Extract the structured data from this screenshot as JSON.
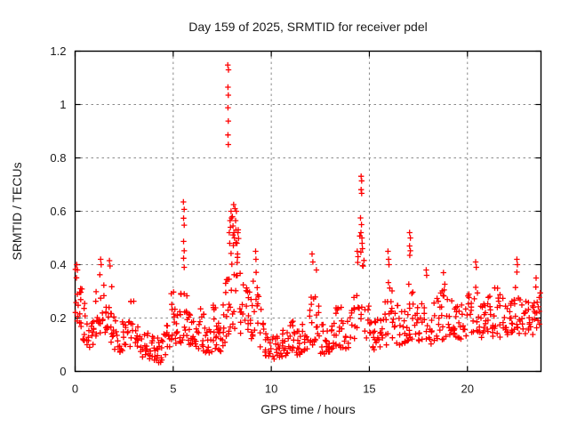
{
  "window": {
    "background": "#ffffff"
  },
  "chart_data": {
    "type": "scatter",
    "title": "Day 159 of 2025, SRMTID for receiver pdel",
    "xlabel": "GPS time / hours",
    "ylabel": "SRMTID / TECUs",
    "xlim": [
      0,
      23.75
    ],
    "ylim": [
      0,
      1.2
    ],
    "xticks": [
      0,
      5,
      10,
      15,
      20
    ],
    "yticks": [
      0,
      0.2,
      0.4,
      0.6,
      0.8,
      1,
      1.2
    ],
    "grid": true,
    "grid_style": "dashed",
    "grid_color": "#8a8a8a",
    "border_color": "#000000",
    "legend": false,
    "marker": "plus",
    "marker_color": "#ff0000",
    "marker_size_px": 7,
    "notable_points": [
      [
        0.08,
        0.4
      ],
      [
        0.12,
        0.38
      ],
      [
        1.3,
        0.42
      ],
      [
        1.33,
        0.4
      ],
      [
        1.75,
        0.415
      ],
      [
        1.78,
        0.395
      ],
      [
        5.52,
        0.635
      ],
      [
        5.56,
        0.607
      ],
      [
        5.53,
        0.574
      ],
      [
        5.56,
        0.548
      ],
      [
        5.53,
        0.487
      ],
      [
        5.56,
        0.452
      ],
      [
        5.53,
        0.424
      ],
      [
        5.56,
        0.39
      ],
      [
        7.78,
        1.148
      ],
      [
        7.82,
        1.13
      ],
      [
        7.79,
        1.065
      ],
      [
        7.81,
        1.035
      ],
      [
        7.79,
        0.988
      ],
      [
        7.81,
        0.938
      ],
      [
        7.79,
        0.886
      ],
      [
        7.81,
        0.85
      ],
      [
        7.86,
        0.52
      ],
      [
        7.88,
        0.48
      ],
      [
        7.9,
        0.565
      ],
      [
        7.92,
        0.54
      ],
      [
        7.95,
        0.6
      ],
      [
        7.97,
        0.575
      ],
      [
        8.02,
        0.58
      ],
      [
        8.05,
        0.545
      ],
      [
        8.08,
        0.625
      ],
      [
        8.1,
        0.52
      ],
      [
        8.12,
        0.5
      ],
      [
        8.15,
        0.61
      ],
      [
        8.18,
        0.565
      ],
      [
        8.2,
        0.53
      ],
      [
        8.22,
        0.6
      ],
      [
        8.25,
        0.48
      ],
      [
        8.28,
        0.44
      ],
      [
        8.3,
        0.52
      ],
      [
        8.33,
        0.498
      ],
      [
        9.2,
        0.45
      ],
      [
        9.22,
        0.42
      ],
      [
        12.08,
        0.44
      ],
      [
        12.12,
        0.41
      ],
      [
        12.3,
        0.38
      ],
      [
        14.38,
        0.45
      ],
      [
        14.42,
        0.43
      ],
      [
        14.58,
        0.731
      ],
      [
        14.61,
        0.714
      ],
      [
        14.58,
        0.681
      ],
      [
        14.61,
        0.667
      ],
      [
        14.55,
        0.575
      ],
      [
        14.6,
        0.55
      ],
      [
        14.57,
        0.52
      ],
      [
        14.62,
        0.5
      ],
      [
        14.63,
        0.48
      ],
      [
        14.65,
        0.46
      ],
      [
        15.95,
        0.45
      ],
      [
        15.98,
        0.42
      ],
      [
        16.0,
        0.4
      ],
      [
        17.05,
        0.52
      ],
      [
        17.09,
        0.5
      ],
      [
        17.05,
        0.47
      ],
      [
        17.09,
        0.452
      ],
      [
        17.06,
        0.435
      ],
      [
        17.9,
        0.38
      ],
      [
        17.92,
        0.36
      ],
      [
        18.78,
        0.37
      ],
      [
        20.42,
        0.41
      ],
      [
        20.45,
        0.39
      ],
      [
        22.52,
        0.42
      ],
      [
        22.55,
        0.4
      ],
      [
        22.52,
        0.372
      ],
      [
        23.5,
        0.35
      ]
    ],
    "baseline_envelope": [
      [
        0.0,
        0.18,
        0.4
      ],
      [
        0.25,
        0.16,
        0.34
      ],
      [
        0.5,
        0.1,
        0.24
      ],
      [
        0.75,
        0.07,
        0.17
      ],
      [
        1.0,
        0.1,
        0.28
      ],
      [
        1.3,
        0.14,
        0.38
      ],
      [
        1.5,
        0.12,
        0.3
      ],
      [
        1.75,
        0.1,
        0.38
      ],
      [
        2.0,
        0.08,
        0.24
      ],
      [
        2.3,
        0.07,
        0.18
      ],
      [
        2.6,
        0.08,
        0.22
      ],
      [
        2.9,
        0.09,
        0.28
      ],
      [
        3.2,
        0.06,
        0.17
      ],
      [
        3.6,
        0.05,
        0.15
      ],
      [
        4.0,
        0.04,
        0.13
      ],
      [
        4.4,
        0.03,
        0.12
      ],
      [
        4.7,
        0.07,
        0.2
      ],
      [
        5.0,
        0.1,
        0.32
      ],
      [
        5.25,
        0.1,
        0.24
      ],
      [
        5.55,
        0.11,
        0.34
      ],
      [
        5.8,
        0.09,
        0.24
      ],
      [
        6.1,
        0.09,
        0.21
      ],
      [
        6.4,
        0.08,
        0.26
      ],
      [
        6.8,
        0.06,
        0.17
      ],
      [
        7.1,
        0.08,
        0.26
      ],
      [
        7.4,
        0.07,
        0.21
      ],
      [
        7.6,
        0.09,
        0.26
      ],
      [
        7.85,
        0.14,
        0.55
      ],
      [
        8.1,
        0.15,
        0.62
      ],
      [
        8.3,
        0.13,
        0.55
      ],
      [
        8.55,
        0.12,
        0.34
      ],
      [
        8.9,
        0.12,
        0.3
      ],
      [
        9.2,
        0.14,
        0.4
      ],
      [
        9.5,
        0.07,
        0.2
      ],
      [
        9.8,
        0.05,
        0.14
      ],
      [
        10.1,
        0.03,
        0.13
      ],
      [
        10.4,
        0.05,
        0.15
      ],
      [
        10.7,
        0.06,
        0.17
      ],
      [
        11.0,
        0.07,
        0.2
      ],
      [
        11.3,
        0.05,
        0.15
      ],
      [
        11.6,
        0.07,
        0.18
      ],
      [
        11.9,
        0.09,
        0.22
      ],
      [
        12.1,
        0.1,
        0.34
      ],
      [
        12.35,
        0.09,
        0.3
      ],
      [
        12.6,
        0.06,
        0.17
      ],
      [
        12.9,
        0.07,
        0.2
      ],
      [
        13.2,
        0.08,
        0.22
      ],
      [
        13.5,
        0.09,
        0.27
      ],
      [
        13.8,
        0.08,
        0.2
      ],
      [
        14.1,
        0.09,
        0.25
      ],
      [
        14.35,
        0.11,
        0.38
      ],
      [
        14.6,
        0.14,
        0.56
      ],
      [
        14.85,
        0.11,
        0.3
      ],
      [
        15.1,
        0.08,
        0.22
      ],
      [
        15.4,
        0.08,
        0.2
      ],
      [
        15.7,
        0.09,
        0.25
      ],
      [
        16.0,
        0.11,
        0.36
      ],
      [
        16.3,
        0.09,
        0.27
      ],
      [
        16.6,
        0.09,
        0.22
      ],
      [
        16.9,
        0.11,
        0.27
      ],
      [
        17.1,
        0.13,
        0.34
      ],
      [
        17.4,
        0.1,
        0.25
      ],
      [
        17.7,
        0.11,
        0.28
      ],
      [
        17.9,
        0.12,
        0.33
      ],
      [
        18.2,
        0.1,
        0.26
      ],
      [
        18.5,
        0.11,
        0.28
      ],
      [
        18.8,
        0.12,
        0.33
      ],
      [
        19.1,
        0.12,
        0.26
      ],
      [
        19.4,
        0.13,
        0.28
      ],
      [
        19.7,
        0.12,
        0.26
      ],
      [
        20.0,
        0.13,
        0.28
      ],
      [
        20.4,
        0.14,
        0.34
      ],
      [
        20.7,
        0.12,
        0.26
      ],
      [
        21.0,
        0.13,
        0.28
      ],
      [
        21.3,
        0.13,
        0.31
      ],
      [
        21.6,
        0.13,
        0.32
      ],
      [
        21.9,
        0.12,
        0.28
      ],
      [
        22.2,
        0.14,
        0.3
      ],
      [
        22.5,
        0.16,
        0.36
      ],
      [
        22.8,
        0.13,
        0.28
      ],
      [
        23.1,
        0.13,
        0.28
      ],
      [
        23.4,
        0.14,
        0.33
      ],
      [
        23.75,
        0.17,
        0.38
      ]
    ],
    "sampling": {
      "epoch_step_hours": 0.125,
      "min_points_per_epoch": 3,
      "max_points_per_epoch": 6,
      "seed": 20250159
    }
  }
}
